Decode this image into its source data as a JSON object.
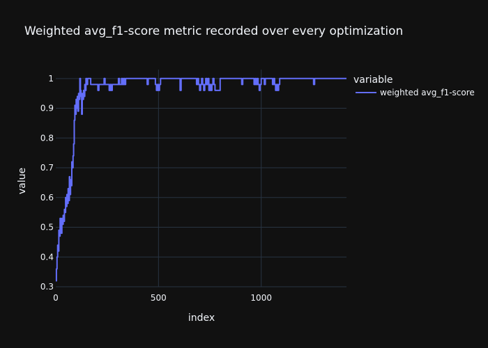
{
  "chart_data": {
    "type": "line",
    "title": "Weighted avg_f1-score metric recorded over every optimization",
    "xlabel": "index",
    "ylabel": "value",
    "xlim": [
      0,
      1415
    ],
    "ylim": [
      0.3,
      1.03
    ],
    "x_ticks": [
      0,
      500,
      1000
    ],
    "y_ticks": [
      0.3,
      0.4,
      0.5,
      0.6,
      0.7,
      0.8,
      0.9,
      1
    ],
    "grid": true,
    "legend": {
      "title": "variable",
      "placement": "right"
    },
    "series": [
      {
        "name": "weighted avg_f1-score",
        "color": "#636efa",
        "points": [
          [
            0,
            0.32
          ],
          [
            3,
            0.36
          ],
          [
            6,
            0.4
          ],
          [
            9,
            0.44
          ],
          [
            12,
            0.42
          ],
          [
            15,
            0.49
          ],
          [
            18,
            0.47
          ],
          [
            21,
            0.53
          ],
          [
            24,
            0.5
          ],
          [
            27,
            0.48
          ],
          [
            30,
            0.53
          ],
          [
            33,
            0.51
          ],
          [
            36,
            0.54
          ],
          [
            39,
            0.52
          ],
          [
            42,
            0.56
          ],
          [
            45,
            0.55
          ],
          [
            48,
            0.6
          ],
          [
            51,
            0.57
          ],
          [
            54,
            0.61
          ],
          [
            57,
            0.58
          ],
          [
            60,
            0.63
          ],
          [
            63,
            0.59
          ],
          [
            66,
            0.67
          ],
          [
            69,
            0.61
          ],
          [
            72,
            0.66
          ],
          [
            75,
            0.64
          ],
          [
            78,
            0.72
          ],
          [
            81,
            0.7
          ],
          [
            84,
            0.74
          ],
          [
            87,
            0.78
          ],
          [
            90,
            0.86
          ],
          [
            93,
            0.91
          ],
          [
            96,
            0.88
          ],
          [
            99,
            0.93
          ],
          [
            102,
            0.9
          ],
          [
            105,
            0.94
          ],
          [
            108,
            0.89
          ],
          [
            111,
            0.95
          ],
          [
            114,
            0.93
          ],
          [
            117,
            1.0
          ],
          [
            120,
            0.96
          ],
          [
            123,
            0.94
          ],
          [
            126,
            0.88
          ],
          [
            129,
            0.95
          ],
          [
            132,
            0.93
          ],
          [
            135,
            0.96
          ],
          [
            138,
            0.94
          ],
          [
            141,
            0.98
          ],
          [
            144,
            0.96
          ],
          [
            147,
            1.0
          ],
          [
            150,
            0.98
          ],
          [
            155,
            1.0
          ],
          [
            160,
            1.0
          ],
          [
            165,
            1.0
          ],
          [
            170,
            0.98
          ],
          [
            180,
            0.98
          ],
          [
            200,
            0.98
          ],
          [
            205,
            0.96
          ],
          [
            210,
            0.98
          ],
          [
            230,
            0.98
          ],
          [
            235,
            1.0
          ],
          [
            240,
            0.98
          ],
          [
            255,
            0.98
          ],
          [
            260,
            0.96
          ],
          [
            265,
            0.98
          ],
          [
            270,
            0.96
          ],
          [
            275,
            0.98
          ],
          [
            300,
            0.98
          ],
          [
            305,
            1.0
          ],
          [
            310,
            0.98
          ],
          [
            320,
            1.0
          ],
          [
            325,
            0.98
          ],
          [
            330,
            1.0
          ],
          [
            335,
            0.98
          ],
          [
            340,
            1.0
          ],
          [
            400,
            1.0
          ],
          [
            440,
            1.0
          ],
          [
            445,
            0.98
          ],
          [
            450,
            1.0
          ],
          [
            480,
            1.0
          ],
          [
            485,
            0.98
          ],
          [
            490,
            0.96
          ],
          [
            495,
            0.98
          ],
          [
            500,
            0.96
          ],
          [
            505,
            0.98
          ],
          [
            510,
            1.0
          ],
          [
            600,
            1.0
          ],
          [
            605,
            0.96
          ],
          [
            610,
            1.0
          ],
          [
            680,
            1.0
          ],
          [
            685,
            0.98
          ],
          [
            690,
            1.0
          ],
          [
            695,
            0.98
          ],
          [
            700,
            0.96
          ],
          [
            705,
            0.98
          ],
          [
            710,
            1.0
          ],
          [
            715,
            0.98
          ],
          [
            720,
            0.96
          ],
          [
            725,
            0.98
          ],
          [
            730,
            1.0
          ],
          [
            735,
            0.98
          ],
          [
            740,
            1.0
          ],
          [
            745,
            0.96
          ],
          [
            750,
            0.98
          ],
          [
            755,
            0.96
          ],
          [
            760,
            0.98
          ],
          [
            765,
            1.0
          ],
          [
            770,
            0.98
          ],
          [
            775,
            0.96
          ],
          [
            795,
            0.96
          ],
          [
            800,
            1.0
          ],
          [
            900,
            1.0
          ],
          [
            905,
            0.98
          ],
          [
            910,
            1.0
          ],
          [
            960,
            1.0
          ],
          [
            965,
            0.98
          ],
          [
            970,
            1.0
          ],
          [
            975,
            0.98
          ],
          [
            980,
            1.0
          ],
          [
            985,
            0.98
          ],
          [
            990,
            0.96
          ],
          [
            995,
            0.98
          ],
          [
            1000,
            1.0
          ],
          [
            1010,
            1.0
          ],
          [
            1015,
            0.98
          ],
          [
            1020,
            1.0
          ],
          [
            1050,
            1.0
          ],
          [
            1055,
            0.98
          ],
          [
            1060,
            1.0
          ],
          [
            1065,
            0.98
          ],
          [
            1070,
            0.96
          ],
          [
            1075,
            0.98
          ],
          [
            1080,
            0.96
          ],
          [
            1085,
            0.98
          ],
          [
            1090,
            1.0
          ],
          [
            1250,
            1.0
          ],
          [
            1255,
            0.98
          ],
          [
            1260,
            1.0
          ],
          [
            1415,
            1.0
          ]
        ]
      }
    ]
  }
}
